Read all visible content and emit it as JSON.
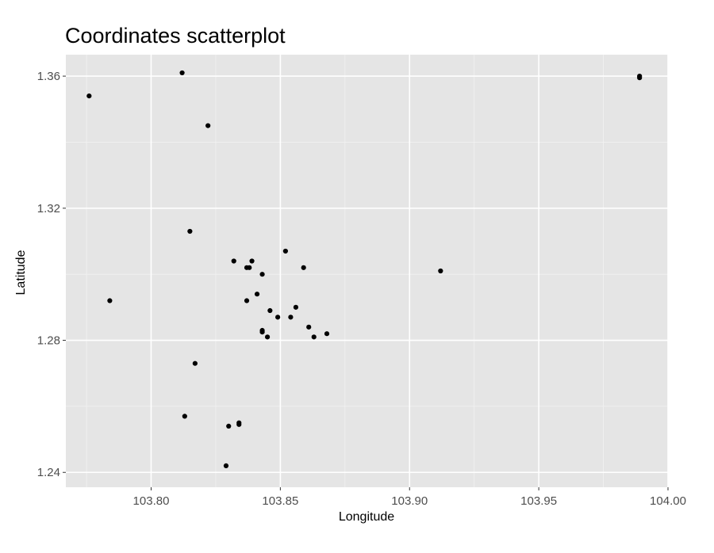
{
  "chart_data": {
    "type": "scatter",
    "title": "Coordinates scatterplot",
    "xlabel": "Longitude",
    "ylabel": "Latitude",
    "xlim": [
      103.767,
      104.0
    ],
    "ylim": [
      1.2355,
      1.3665
    ],
    "x_ticks": [
      103.8,
      103.85,
      103.9,
      103.95,
      104.0
    ],
    "x_tick_labels": [
      "103.80",
      "103.85",
      "103.90",
      "103.95",
      "104.00"
    ],
    "y_ticks": [
      1.24,
      1.28,
      1.32,
      1.36
    ],
    "y_tick_labels": [
      "1.24",
      "1.28",
      "1.32",
      "1.36"
    ],
    "grid": true,
    "legend": "none",
    "colors": {
      "panel_background": "#e5e5e5",
      "grid_major": "#ffffff",
      "grid_minor": "#f2f2f2",
      "point": "#000000",
      "axis_text": "#4d4d4d"
    },
    "points": [
      {
        "x": 103.812,
        "y": 1.361
      },
      {
        "x": 103.776,
        "y": 1.354
      },
      {
        "x": 103.822,
        "y": 1.345
      },
      {
        "x": 103.815,
        "y": 1.313
      },
      {
        "x": 103.832,
        "y": 1.304
      },
      {
        "x": 103.839,
        "y": 1.304
      },
      {
        "x": 103.838,
        "y": 1.302
      },
      {
        "x": 103.837,
        "y": 1.302
      },
      {
        "x": 103.843,
        "y": 1.3
      },
      {
        "x": 103.852,
        "y": 1.307
      },
      {
        "x": 103.859,
        "y": 1.302
      },
      {
        "x": 103.912,
        "y": 1.301
      },
      {
        "x": 103.989,
        "y": 1.36
      },
      {
        "x": 103.989,
        "y": 1.3595
      },
      {
        "x": 103.784,
        "y": 1.292
      },
      {
        "x": 103.841,
        "y": 1.294
      },
      {
        "x": 103.837,
        "y": 1.292
      },
      {
        "x": 103.846,
        "y": 1.289
      },
      {
        "x": 103.849,
        "y": 1.287
      },
      {
        "x": 103.854,
        "y": 1.287
      },
      {
        "x": 103.856,
        "y": 1.29
      },
      {
        "x": 103.843,
        "y": 1.283
      },
      {
        "x": 103.843,
        "y": 1.2825
      },
      {
        "x": 103.845,
        "y": 1.281
      },
      {
        "x": 103.861,
        "y": 1.284
      },
      {
        "x": 103.863,
        "y": 1.281
      },
      {
        "x": 103.868,
        "y": 1.282
      },
      {
        "x": 103.817,
        "y": 1.273
      },
      {
        "x": 103.813,
        "y": 1.257
      },
      {
        "x": 103.83,
        "y": 1.254
      },
      {
        "x": 103.834,
        "y": 1.255
      },
      {
        "x": 103.834,
        "y": 1.2545
      },
      {
        "x": 103.829,
        "y": 1.242
      }
    ]
  }
}
